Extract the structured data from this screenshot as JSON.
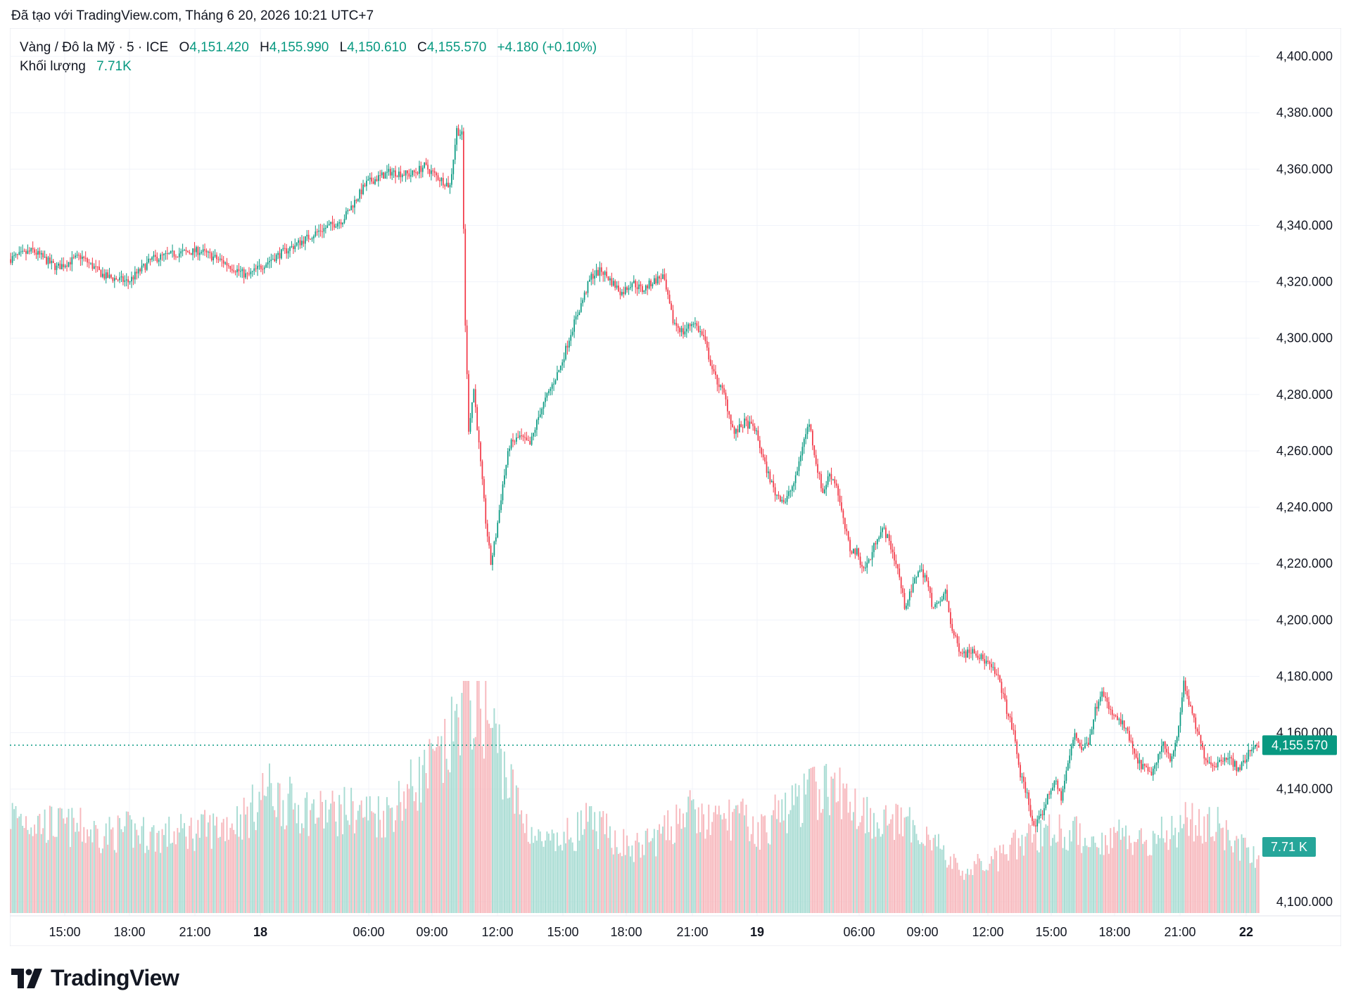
{
  "header": {
    "created_with": "Đã tạo với TradingView.com, Tháng 6 20, 2026 10:21 UTC+7"
  },
  "legend": {
    "symbol": "Vàng / Đô la Mỹ · 5 · ICE",
    "open_label": "O",
    "open": "4,151.420",
    "high_label": "H",
    "high": "4,155.990",
    "low_label": "L",
    "low": "4,150.610",
    "close_label": "C",
    "close": "4,155.570",
    "change": "+4.180 (+0.10%)",
    "volume_label": "Khối lượng",
    "volume": "7.71K"
  },
  "price_badge": "4,155.570",
  "volume_badge": "7.71 K",
  "brand": {
    "name": "TradingView"
  },
  "colors": {
    "up": "#089981",
    "down": "#f23645",
    "up_vol": "#a8dcd3",
    "down_vol": "#f7b8bd",
    "grid": "#f0f3fa",
    "axis_text": "#131722"
  },
  "chart_data": {
    "type": "candlestick",
    "interval": "5",
    "y_axis_ticks": [
      "4,400.000",
      "4,380.000",
      "4,360.000",
      "4,340.000",
      "4,320.000",
      "4,300.000",
      "4,280.000",
      "4,260.000",
      "4,240.000",
      "4,220.000",
      "4,200.000",
      "4,180.000",
      "4,160.000",
      "4,140.000",
      "4,100.000"
    ],
    "ylim": [
      4095,
      4410
    ],
    "x_axis_ticks": [
      "15:00",
      "18:00",
      "21:00",
      "18",
      "06:00",
      "09:00",
      "12:00",
      "15:00",
      "18:00",
      "21:00",
      "19",
      "06:00",
      "09:00",
      "12:00",
      "15:00",
      "18:00",
      "21:00",
      "22"
    ],
    "price_path": [
      [
        0,
        4328
      ],
      [
        14,
        4331
      ],
      [
        28,
        4325
      ],
      [
        42,
        4329
      ],
      [
        56,
        4322
      ],
      [
        70,
        4320
      ],
      [
        84,
        4328
      ],
      [
        98,
        4330
      ],
      [
        112,
        4331
      ],
      [
        126,
        4327
      ],
      [
        140,
        4322
      ],
      [
        154,
        4328
      ],
      [
        168,
        4333
      ],
      [
        182,
        4338
      ],
      [
        196,
        4342
      ],
      [
        210,
        4355
      ],
      [
        224,
        4359
      ],
      [
        236,
        4358
      ],
      [
        244,
        4361
      ],
      [
        252,
        4357
      ],
      [
        259,
        4354
      ],
      [
        263,
        4374
      ],
      [
        266,
        4372
      ],
      [
        268,
        4305
      ],
      [
        270,
        4268
      ],
      [
        273,
        4282
      ],
      [
        276,
        4262
      ],
      [
        280,
        4235
      ],
      [
        283,
        4220
      ],
      [
        286,
        4230
      ],
      [
        290,
        4248
      ],
      [
        294,
        4262
      ],
      [
        300,
        4265
      ],
      [
        306,
        4262
      ],
      [
        312,
        4274
      ],
      [
        318,
        4282
      ],
      [
        324,
        4290
      ],
      [
        330,
        4302
      ],
      [
        336,
        4312
      ],
      [
        342,
        4322
      ],
      [
        348,
        4324
      ],
      [
        354,
        4320
      ],
      [
        360,
        4316
      ],
      [
        366,
        4320
      ],
      [
        372,
        4317
      ],
      [
        378,
        4320
      ],
      [
        384,
        4322
      ],
      [
        390,
        4306
      ],
      [
        396,
        4302
      ],
      [
        402,
        4306
      ],
      [
        408,
        4300
      ],
      [
        414,
        4287
      ],
      [
        420,
        4280
      ],
      [
        426,
        4266
      ],
      [
        432,
        4270
      ],
      [
        438,
        4268
      ],
      [
        444,
        4255
      ],
      [
        450,
        4245
      ],
      [
        456,
        4242
      ],
      [
        462,
        4250
      ],
      [
        466,
        4262
      ],
      [
        470,
        4270
      ],
      [
        474,
        4256
      ],
      [
        478,
        4245
      ],
      [
        482,
        4252
      ],
      [
        486,
        4248
      ],
      [
        490,
        4235
      ],
      [
        494,
        4225
      ],
      [
        498,
        4224
      ],
      [
        502,
        4218
      ],
      [
        506,
        4222
      ],
      [
        510,
        4230
      ],
      [
        514,
        4232
      ],
      [
        518,
        4226
      ],
      [
        522,
        4218
      ],
      [
        526,
        4205
      ],
      [
        530,
        4210
      ],
      [
        534,
        4218
      ],
      [
        538,
        4216
      ],
      [
        542,
        4206
      ],
      [
        546,
        4205
      ],
      [
        550,
        4210
      ],
      [
        554,
        4196
      ],
      [
        558,
        4190
      ],
      [
        562,
        4188
      ],
      [
        566,
        4190
      ],
      [
        570,
        4187
      ],
      [
        574,
        4185
      ],
      [
        578,
        4182
      ],
      [
        582,
        4178
      ],
      [
        586,
        4168
      ],
      [
        590,
        4160
      ],
      [
        594,
        4145
      ],
      [
        598,
        4138
      ],
      [
        602,
        4126
      ],
      [
        606,
        4130
      ],
      [
        610,
        4137
      ],
      [
        614,
        4143
      ],
      [
        618,
        4137
      ],
      [
        622,
        4149
      ],
      [
        626,
        4160
      ],
      [
        630,
        4154
      ],
      [
        634,
        4157
      ],
      [
        638,
        4168
      ],
      [
        642,
        4176
      ],
      [
        646,
        4168
      ],
      [
        650,
        4165
      ],
      [
        654,
        4163
      ],
      [
        658,
        4158
      ],
      [
        662,
        4150
      ],
      [
        666,
        4148
      ],
      [
        670,
        4145
      ],
      [
        674,
        4149
      ],
      [
        678,
        4157
      ],
      [
        682,
        4151
      ],
      [
        686,
        4157
      ],
      [
        690,
        4178
      ],
      [
        694,
        4168
      ],
      [
        698,
        4160
      ],
      [
        702,
        4152
      ],
      [
        706,
        4149
      ],
      [
        710,
        4149
      ],
      [
        714,
        4152
      ],
      [
        718,
        4150
      ],
      [
        722,
        4147
      ],
      [
        726,
        4150
      ],
      [
        730,
        4155
      ],
      [
        733,
        4156
      ]
    ],
    "volume_ylim": [
      0,
      260
    ],
    "volume_profile": [
      [
        0,
        110
      ],
      [
        20,
        100
      ],
      [
        40,
        95
      ],
      [
        55,
        88
      ],
      [
        70,
        92
      ],
      [
        85,
        86
      ],
      [
        100,
        90
      ],
      [
        120,
        95
      ],
      [
        140,
        110
      ],
      [
        150,
        140
      ],
      [
        160,
        125
      ],
      [
        170,
        118
      ],
      [
        180,
        112
      ],
      [
        200,
        115
      ],
      [
        220,
        110
      ],
      [
        240,
        150
      ],
      [
        255,
        175
      ],
      [
        262,
        210
      ],
      [
        265,
        245
      ],
      [
        270,
        235
      ],
      [
        278,
        225
      ],
      [
        285,
        195
      ],
      [
        292,
        150
      ],
      [
        300,
        110
      ],
      [
        310,
        80
      ],
      [
        320,
        75
      ],
      [
        330,
        90
      ],
      [
        338,
        100
      ],
      [
        345,
        95
      ],
      [
        355,
        85
      ],
      [
        365,
        70
      ],
      [
        375,
        80
      ],
      [
        385,
        90
      ],
      [
        395,
        115
      ],
      [
        405,
        105
      ],
      [
        415,
        100
      ],
      [
        425,
        110
      ],
      [
        440,
        90
      ],
      [
        450,
        110
      ],
      [
        460,
        120
      ],
      [
        470,
        135
      ],
      [
        480,
        140
      ],
      [
        490,
        130
      ],
      [
        500,
        115
      ],
      [
        510,
        105
      ],
      [
        520,
        100
      ],
      [
        530,
        95
      ],
      [
        540,
        90
      ],
      [
        550,
        60
      ],
      [
        560,
        45
      ],
      [
        570,
        55
      ],
      [
        580,
        60
      ],
      [
        590,
        75
      ],
      [
        600,
        85
      ],
      [
        610,
        95
      ],
      [
        620,
        90
      ],
      [
        630,
        85
      ],
      [
        640,
        80
      ],
      [
        650,
        90
      ],
      [
        660,
        80
      ],
      [
        670,
        85
      ],
      [
        680,
        90
      ],
      [
        690,
        105
      ],
      [
        700,
        100
      ],
      [
        710,
        95
      ],
      [
        720,
        80
      ],
      [
        733,
        55
      ]
    ]
  }
}
